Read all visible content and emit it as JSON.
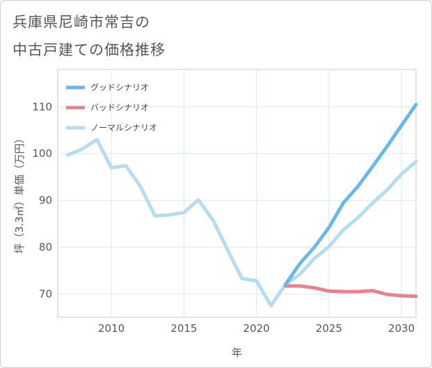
{
  "title_line1": "兵庫県尼崎市常吉の",
  "title_line2": "中古戸建ての価格推移",
  "chart_data": {
    "type": "line",
    "title": "兵庫県尼崎市常吉の中古戸建ての価格推移",
    "xlabel": "年",
    "ylabel": "坪（3.3㎡）単価（万円）",
    "xlim": [
      2006.3,
      2031
    ],
    "ylim": [
      65,
      118
    ],
    "xticks": [
      2010,
      2015,
      2020,
      2025,
      2030
    ],
    "yticks": [
      70,
      80,
      90,
      100,
      110
    ],
    "grid": true,
    "legend_position": "top-left",
    "series": [
      {
        "name": "グッドシナリオ",
        "color": "#6bb7ea",
        "x": [
          2022,
          2023,
          2024,
          2025,
          2026,
          2027,
          2028,
          2029,
          2030,
          2031
        ],
        "values": [
          72,
          76.5,
          80,
          84.2,
          89.5,
          93,
          97.2,
          101.5,
          106,
          110.5
        ]
      },
      {
        "name": "バッドシナリオ",
        "color": "#e0868e",
        "x": [
          2022,
          2023,
          2024,
          2025,
          2026,
          2027,
          2028,
          2029,
          2030,
          2031
        ],
        "values": [
          71.7,
          71.7,
          71.3,
          70.6,
          70.5,
          70.5,
          70.7,
          69.9,
          69.6,
          69.5
        ]
      },
      {
        "name": "ノーマルシナリオ",
        "color": "#b8dcef",
        "x": [
          2007,
          2008,
          2009,
          2010,
          2011,
          2012,
          2013,
          2014,
          2015,
          2016,
          2017,
          2018,
          2019,
          2020,
          2021,
          2022,
          2023,
          2024,
          2025,
          2026,
          2027,
          2028,
          2029,
          2030,
          2031
        ],
        "values": [
          99.7,
          101,
          103,
          97,
          97.4,
          93,
          86.7,
          86.9,
          87.4,
          90.1,
          85.8,
          79.5,
          73.3,
          72.8,
          67.5,
          72,
          74.2,
          77.6,
          80.1,
          83.7,
          86.3,
          89.4,
          92.2,
          95.6,
          98.3
        ]
      }
    ]
  }
}
